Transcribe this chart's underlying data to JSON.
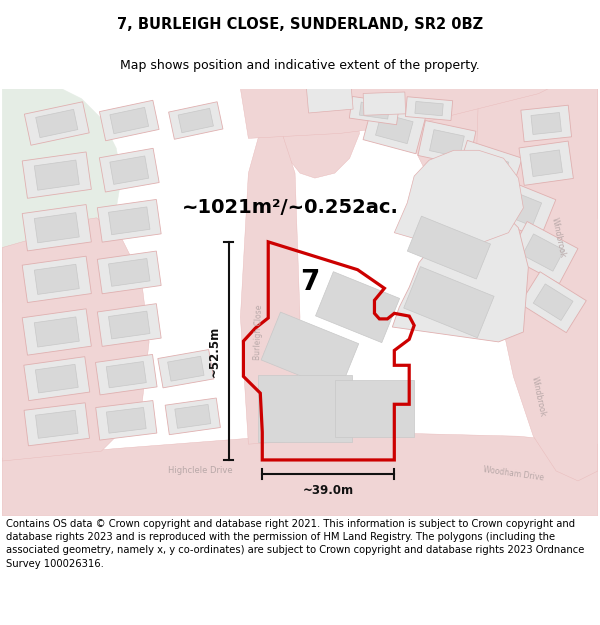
{
  "title": "7, BURLEIGH CLOSE, SUNDERLAND, SR2 0BZ",
  "subtitle": "Map shows position and indicative extent of the property.",
  "area_text": "~1021m²/~0.252ac.",
  "label_7": "7",
  "dim_vertical": "~52.5m",
  "dim_horizontal": "~39.0m",
  "footer": "Contains OS data © Crown copyright and database right 2021. This information is subject to Crown copyright and database rights 2023 and is reproduced with the permission of HM Land Registry. The polygons (including the associated geometry, namely x, y co-ordinates) are subject to Crown copyright and database rights 2023 Ordnance Survey 100026316.",
  "map_bg": "#edecea",
  "green_color": "#e5ede5",
  "road_fill": "#f0d5d5",
  "road_edge": "#e8b8b8",
  "road_line": "#e0b0b0",
  "building_fill": "#d8d8d8",
  "building_edge": "#c8c8c8",
  "plot_fill": "#e8e8e8",
  "plot_edge": "#d0d0d0",
  "property_edge": "#cc0000",
  "dim_color": "#111111",
  "road_label_color": "#b8a8a8",
  "white": "#ffffff",
  "title_fontsize": 10.5,
  "subtitle_fontsize": 9,
  "footer_fontsize": 7.2,
  "area_fontsize": 14,
  "label_fontsize": 20,
  "dim_fontsize": 8.5
}
